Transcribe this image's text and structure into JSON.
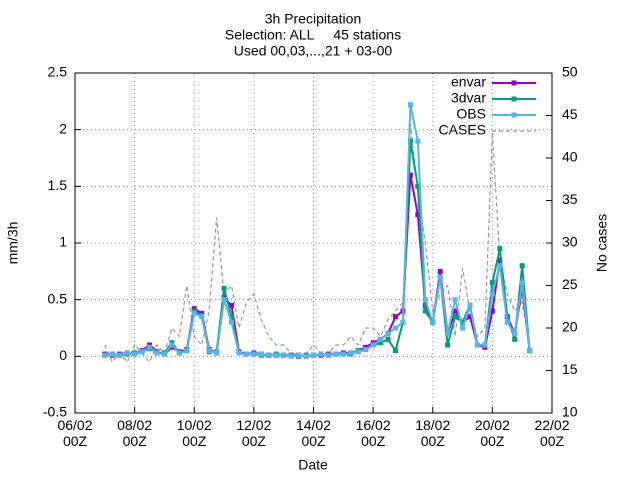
{
  "chart_data": {
    "type": "line",
    "title": "3h Precipitation",
    "subtitle": [
      "Selection: ALL     45 stations",
      "Used 00,03,...,21 + 03-00"
    ],
    "xlabel": "Date",
    "ylabel": "mm/3h",
    "y2label": "No cases",
    "x": [
      "07/02 00Z",
      "07/02 06Z",
      "07/02 12Z",
      "07/02 18Z",
      "08/02 00Z",
      "08/02 06Z",
      "08/02 12Z",
      "08/02 18Z",
      "09/02 00Z",
      "09/02 06Z",
      "09/02 12Z",
      "09/02 18Z",
      "10/02 00Z",
      "10/02 06Z",
      "10/02 12Z",
      "10/02 18Z",
      "11/02 00Z",
      "11/02 06Z",
      "11/02 12Z",
      "11/02 18Z",
      "12/02 00Z",
      "12/02 06Z",
      "12/02 12Z",
      "12/02 18Z",
      "13/02 00Z",
      "13/02 06Z",
      "13/02 12Z",
      "13/02 18Z",
      "14/02 00Z",
      "14/02 06Z",
      "14/02 12Z",
      "14/02 18Z",
      "15/02 00Z",
      "15/02 06Z",
      "15/02 12Z",
      "15/02 18Z",
      "16/02 00Z",
      "16/02 06Z",
      "16/02 12Z",
      "16/02 18Z",
      "17/02 00Z",
      "17/02 06Z",
      "17/02 12Z",
      "17/02 18Z",
      "18/02 00Z",
      "18/02 06Z",
      "18/02 12Z",
      "18/02 18Z",
      "19/02 00Z",
      "19/02 06Z",
      "19/02 12Z",
      "19/02 18Z",
      "20/02 00Z",
      "20/02 06Z",
      "20/02 12Z",
      "20/02 18Z",
      "21/02 00Z",
      "21/02 06Z"
    ],
    "series": [
      {
        "name": "envar",
        "color": "#9400d3",
        "values": [
          0.02,
          0.01,
          0.02,
          0.03,
          0.02,
          0.05,
          0.1,
          0.04,
          0.02,
          0.08,
          0.04,
          0.06,
          0.42,
          0.38,
          0.06,
          0.03,
          0.52,
          0.45,
          0.04,
          0.02,
          0.03,
          0.02,
          0.01,
          0.01,
          0.01,
          0.01,
          0.01,
          0.0,
          0.01,
          0.01,
          0.02,
          0.02,
          0.03,
          0.03,
          0.05,
          0.08,
          0.12,
          0.15,
          0.2,
          0.35,
          0.4,
          1.6,
          1.25,
          0.45,
          0.3,
          0.75,
          0.2,
          0.4,
          0.3,
          0.35,
          0.1,
          0.08,
          0.4,
          0.85,
          0.35,
          0.2,
          0.6,
          0.05
        ]
      },
      {
        "name": "3dvar",
        "color": "#009e73",
        "values": [
          0.01,
          0.02,
          0.01,
          0.02,
          0.03,
          0.04,
          0.07,
          0.03,
          0.03,
          0.12,
          0.03,
          0.05,
          0.4,
          0.36,
          0.04,
          0.04,
          0.6,
          0.35,
          0.03,
          0.02,
          0.02,
          0.01,
          0.01,
          0.02,
          0.01,
          0.01,
          0.0,
          0.01,
          0.01,
          0.02,
          0.01,
          0.02,
          0.02,
          0.02,
          0.05,
          0.06,
          0.1,
          0.12,
          0.15,
          0.05,
          0.3,
          1.9,
          1.5,
          0.4,
          0.3,
          0.7,
          0.1,
          0.35,
          0.3,
          0.45,
          0.1,
          0.1,
          0.65,
          0.95,
          0.35,
          0.15,
          0.8,
          0.05
        ]
      },
      {
        "name": "OBS",
        "color": "#56b4e9",
        "values": [
          0.01,
          0.02,
          0.01,
          0.03,
          0.02,
          0.04,
          0.08,
          0.03,
          0.02,
          0.1,
          0.03,
          0.05,
          0.38,
          0.35,
          0.05,
          0.03,
          0.5,
          0.3,
          0.03,
          0.02,
          0.02,
          0.02,
          0.01,
          0.01,
          0.01,
          0.0,
          0.01,
          0.0,
          0.01,
          0.02,
          0.01,
          0.02,
          0.02,
          0.03,
          0.04,
          0.06,
          0.1,
          0.15,
          0.2,
          0.25,
          0.3,
          2.22,
          1.9,
          0.5,
          0.3,
          0.7,
          0.2,
          0.5,
          0.25,
          0.45,
          0.1,
          0.1,
          0.55,
          0.8,
          0.3,
          0.2,
          0.65,
          0.05
        ]
      },
      {
        "name": "CASES",
        "color": "#999999",
        "axis": "y2",
        "style": "dashed",
        "values": [
          18,
          16,
          17,
          16,
          18,
          17,
          16,
          18,
          17,
          20,
          19,
          25,
          19,
          18,
          22,
          33,
          24,
          25,
          20,
          23,
          24,
          21,
          19,
          18,
          18,
          17,
          17,
          17,
          18,
          17,
          17,
          18,
          18,
          19,
          18,
          20,
          20,
          19,
          21,
          22,
          23,
          44,
          36,
          30,
          22,
          24,
          25,
          19,
          27,
          22,
          19,
          20,
          43,
          28,
          24,
          22,
          23,
          18
        ]
      }
    ],
    "xlim": [
      "06/02 00Z",
      "22/02 00Z"
    ],
    "xticks": [
      "06/02 00Z",
      "08/02 00Z",
      "10/02 00Z",
      "12/02 00Z",
      "14/02 00Z",
      "16/02 00Z",
      "18/02 00Z",
      "20/02 00Z",
      "22/02 00Z"
    ],
    "ylim": [
      -0.5,
      2.5
    ],
    "yticks": [
      -0.5,
      0,
      0.5,
      1,
      1.5,
      2,
      2.5
    ],
    "y2lim": [
      10,
      50
    ],
    "y2ticks": [
      10,
      15,
      20,
      25,
      30,
      35,
      40,
      45,
      50
    ],
    "grid": true,
    "legend": "top-right"
  }
}
